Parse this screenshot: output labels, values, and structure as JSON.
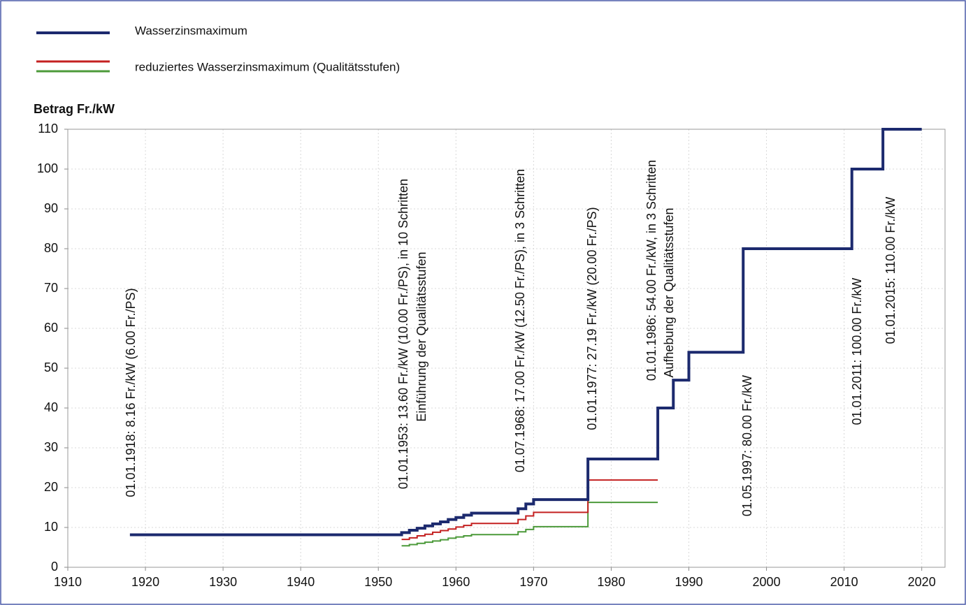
{
  "chart_data": {
    "type": "step",
    "y_label": "Betrag Fr./kW",
    "xlim": [
      1910,
      2023
    ],
    "ylim": [
      0,
      110
    ],
    "xticks": [
      1910,
      1920,
      1930,
      1940,
      1950,
      1960,
      1970,
      1980,
      1990,
      2000,
      2010,
      2020
    ],
    "yticks": [
      0,
      10,
      20,
      30,
      40,
      50,
      60,
      70,
      80,
      90,
      100,
      110
    ],
    "grid": true,
    "series": [
      {
        "name": "Wasserzinsmaximum",
        "color": "#1c2a6e",
        "x": [
          1918,
          1953,
          1954,
          1955,
          1956,
          1957,
          1958,
          1959,
          1960,
          1961,
          1962,
          1968,
          1969,
          1970,
          1977,
          1986,
          1988,
          1990,
          1997,
          2011,
          2015,
          2020
        ],
        "values": [
          8.16,
          8.7,
          9.3,
          9.8,
          10.4,
          10.9,
          11.4,
          12.0,
          12.5,
          13.1,
          13.6,
          14.7,
          15.9,
          17.0,
          27.19,
          40,
          47,
          54,
          80,
          100,
          110,
          110
        ]
      },
      {
        "name": "reduziertes Wasserzinsmaximum (Qualitätsstufen)",
        "color": "#c42121",
        "x": [
          1953,
          1954,
          1955,
          1956,
          1957,
          1958,
          1959,
          1960,
          1961,
          1962,
          1968,
          1969,
          1970,
          1977,
          1986
        ],
        "values": [
          7.0,
          7.4,
          7.9,
          8.3,
          8.8,
          9.2,
          9.6,
          10.1,
          10.5,
          11.0,
          12.0,
          12.9,
          13.8,
          21.9,
          21.9
        ]
      },
      {
        "color": "#4c9a3a",
        "x": [
          1953,
          1954,
          1955,
          1956,
          1957,
          1958,
          1959,
          1960,
          1961,
          1962,
          1968,
          1969,
          1970,
          1977,
          1986
        ],
        "values": [
          5.4,
          5.7,
          6.0,
          6.3,
          6.6,
          6.9,
          7.3,
          7.6,
          7.9,
          8.2,
          8.9,
          9.5,
          10.2,
          16.3,
          16.3
        ]
      }
    ],
    "annotations": [
      [
        "01.01.1918: 8.16 Fr./kW (6.00 Fr./PS)"
      ],
      [
        "01.01.1953: 13.60 Fr./kW (10.00 Fr./PS), in 10 Schritten",
        "Einführung der Qualitätsstufen"
      ],
      [
        "01.07.1968: 17.00 Fr./kW (12.50 Fr./PS), in 3 Schritten"
      ],
      [
        "01.01.1977: 27.19 Fr./kW (20.00 Fr./PS)"
      ],
      [
        "01.01.1986: 54.00 Fr./kW, in 3 Schritten",
        "Aufhebung der Qualitätsstufen"
      ],
      [
        "01.05.1997: 80.00 Fr./kW"
      ],
      [
        "01.01.2011: 100.00 Fr./kW"
      ],
      [
        "01.01.2015: 110.00 Fr./kW"
      ]
    ]
  }
}
